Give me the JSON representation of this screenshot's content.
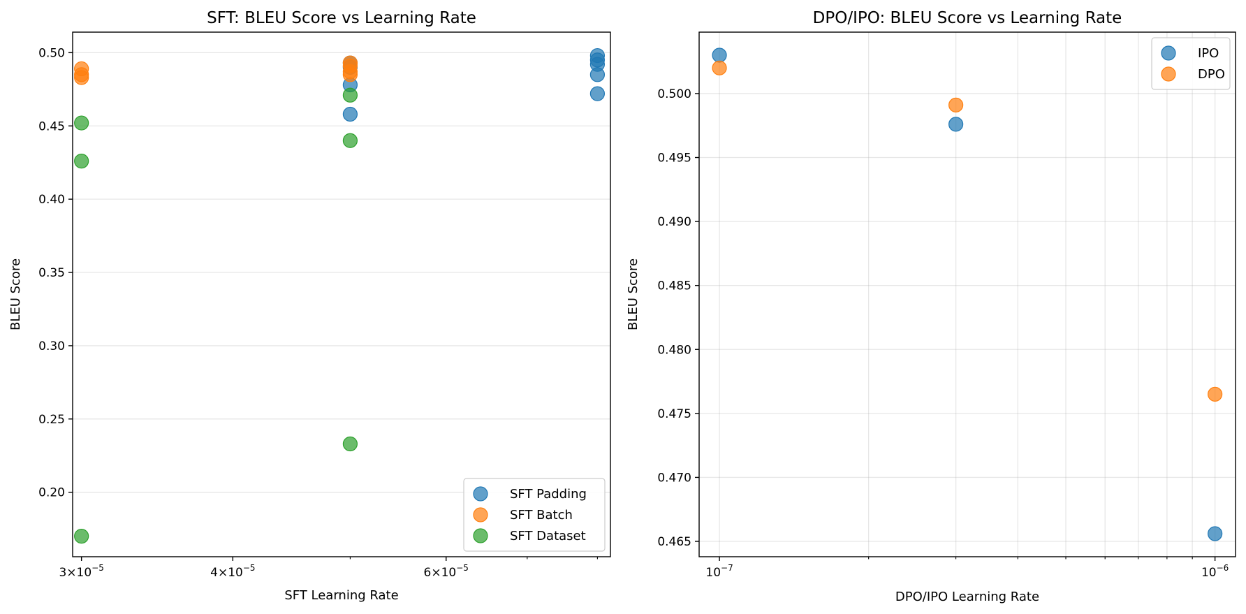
{
  "chart_data": [
    {
      "type": "scatter",
      "title": "SFT: BLEU Score vs Learning Rate",
      "xlabel": "SFT Learning Rate",
      "ylabel": "BLEU Score",
      "xscale": "log",
      "xlim": [
        2.95e-05,
        8.2e-05
      ],
      "ylim": [
        0.156,
        0.514
      ],
      "grid": "horizontal",
      "legend_position": "lower-right",
      "xticks": [
        {
          "value": 3e-05,
          "mantissa": "3",
          "base": "10",
          "exp": "−5"
        },
        {
          "value": 4e-05,
          "mantissa": "4",
          "base": "10",
          "exp": "−5"
        },
        {
          "value": 6e-05,
          "mantissa": "6",
          "base": "10",
          "exp": "−5"
        }
      ],
      "yticks": [
        {
          "value": 0.2,
          "label": "0.20"
        },
        {
          "value": 0.25,
          "label": "0.25"
        },
        {
          "value": 0.3,
          "label": "0.30"
        },
        {
          "value": 0.35,
          "label": "0.35"
        },
        {
          "value": 0.4,
          "label": "0.40"
        },
        {
          "value": 0.45,
          "label": "0.45"
        },
        {
          "value": 0.5,
          "label": "0.50"
        }
      ],
      "series": [
        {
          "name": "SFT Padding",
          "color": "#1f77b4",
          "points": [
            [
              5e-05,
              0.458
            ],
            [
              5e-05,
              0.478
            ],
            [
              5e-05,
              0.49
            ],
            [
              5e-05,
              0.493
            ],
            [
              8e-05,
              0.472
            ],
            [
              8e-05,
              0.485
            ],
            [
              8e-05,
              0.492
            ],
            [
              8e-05,
              0.495
            ],
            [
              8e-05,
              0.498
            ]
          ]
        },
        {
          "name": "SFT Batch",
          "color": "#ff7f0e",
          "points": [
            [
              3e-05,
              0.483
            ],
            [
              3e-05,
              0.485
            ],
            [
              3e-05,
              0.489
            ],
            [
              5e-05,
              0.485
            ],
            [
              5e-05,
              0.487
            ],
            [
              5e-05,
              0.491
            ],
            [
              5e-05,
              0.493
            ]
          ]
        },
        {
          "name": "SFT Dataset",
          "color": "#2ca02c",
          "points": [
            [
              3e-05,
              0.17
            ],
            [
              3e-05,
              0.426
            ],
            [
              3e-05,
              0.452
            ],
            [
              5e-05,
              0.233
            ],
            [
              5e-05,
              0.44
            ],
            [
              5e-05,
              0.471
            ]
          ]
        }
      ]
    },
    {
      "type": "scatter",
      "title": "DPO/IPO: BLEU Score vs Learning Rate",
      "xlabel": "DPO/IPO Learning Rate",
      "ylabel": "BLEU Score",
      "xscale": "log",
      "xlim": [
        9.1e-08,
        1.1e-06
      ],
      "ylim": [
        0.4638,
        0.5048
      ],
      "grid": "both",
      "legend_position": "upper-right",
      "xticks": [
        {
          "value": 1e-07,
          "mantissa": "",
          "base": "10",
          "exp": "−7"
        },
        {
          "value": 1e-06,
          "mantissa": "",
          "base": "10",
          "exp": "−6"
        }
      ],
      "yticks": [
        {
          "value": 0.465,
          "label": "0.465"
        },
        {
          "value": 0.47,
          "label": "0.470"
        },
        {
          "value": 0.475,
          "label": "0.475"
        },
        {
          "value": 0.48,
          "label": "0.480"
        },
        {
          "value": 0.485,
          "label": "0.485"
        },
        {
          "value": 0.49,
          "label": "0.490"
        },
        {
          "value": 0.495,
          "label": "0.495"
        },
        {
          "value": 0.5,
          "label": "0.500"
        }
      ],
      "series": [
        {
          "name": "IPO",
          "color": "#1f77b4",
          "points": [
            [
              1e-07,
              0.503
            ],
            [
              3e-07,
              0.4976
            ],
            [
              1e-06,
              0.4656
            ]
          ]
        },
        {
          "name": "DPO",
          "color": "#ff7f0e",
          "points": [
            [
              1e-07,
              0.502
            ],
            [
              3e-07,
              0.4991
            ],
            [
              1e-06,
              0.4765
            ]
          ]
        }
      ]
    }
  ]
}
